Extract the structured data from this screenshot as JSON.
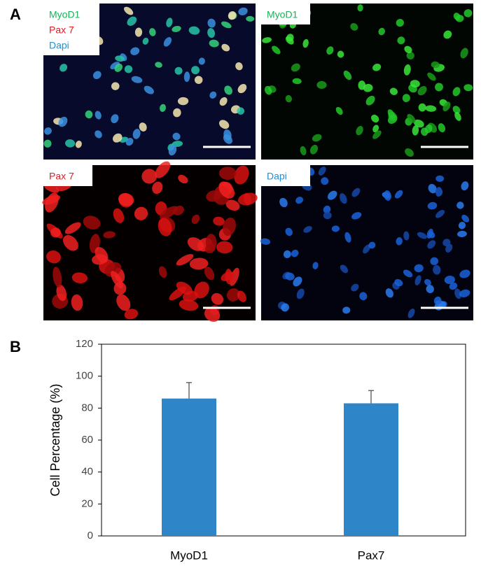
{
  "figure": {
    "panel_a_label": "A",
    "panel_b_label": "B",
    "images": [
      {
        "labels": [
          {
            "text": "MyoD1",
            "color": "#17b35a"
          },
          {
            "text": "Pax 7",
            "color": "#f0141e"
          },
          {
            "text": "Dapi",
            "color": "#1f8fd6"
          }
        ]
      },
      {
        "labels": [
          {
            "text": "MyoD1",
            "color": "#17b35a"
          }
        ]
      },
      {
        "labels": [
          {
            "text": "Pax 7",
            "color": "#f0141e"
          }
        ]
      },
      {
        "labels": [
          {
            "text": "Dapi",
            "color": "#1f8fd6"
          }
        ]
      }
    ]
  },
  "chart_data": {
    "type": "bar",
    "y_label": "Cell Percentage (%)",
    "categories": [
      "MyoD1",
      "Pax7"
    ],
    "values": [
      86,
      83
    ],
    "errors": [
      10,
      8
    ],
    "color": "#2e86c9",
    "ylim": [
      0,
      120
    ],
    "yticks": [
      0,
      20,
      40,
      60,
      80,
      100,
      120
    ]
  }
}
